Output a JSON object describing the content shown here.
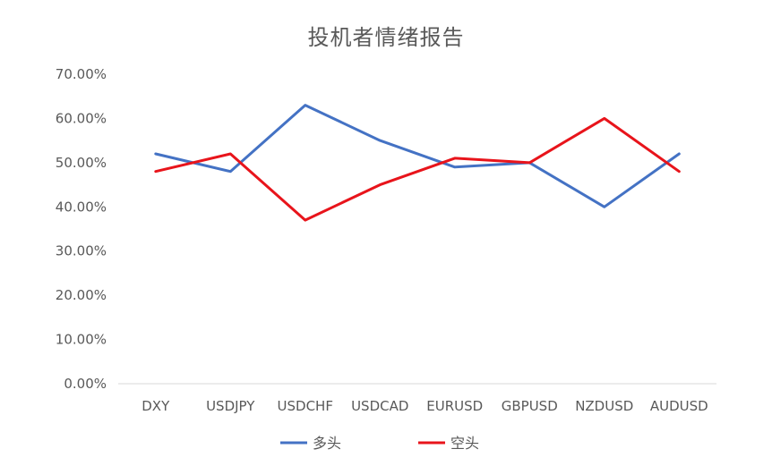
{
  "chart_data": {
    "type": "line",
    "title": "投机者情绪报告",
    "categories": [
      "DXY",
      "USDJPY",
      "USDCHF",
      "USDCAD",
      "EURUSD",
      "GBPUSD",
      "NZDUSD",
      "AUDUSD"
    ],
    "series": [
      {
        "name": "多头",
        "color": "#4472C4",
        "values": [
          52,
          48,
          63,
          55,
          49,
          50,
          40,
          52
        ]
      },
      {
        "name": "空头",
        "color": "#E8141B",
        "values": [
          48,
          52,
          37,
          45,
          51,
          50,
          60,
          48
        ]
      }
    ],
    "y_ticks": [
      "0.00%",
      "10.00%",
      "20.00%",
      "30.00%",
      "40.00%",
      "50.00%",
      "60.00%",
      "70.00%"
    ],
    "ylim": [
      0,
      70
    ],
    "grid": false,
    "legend_position": "bottom"
  }
}
